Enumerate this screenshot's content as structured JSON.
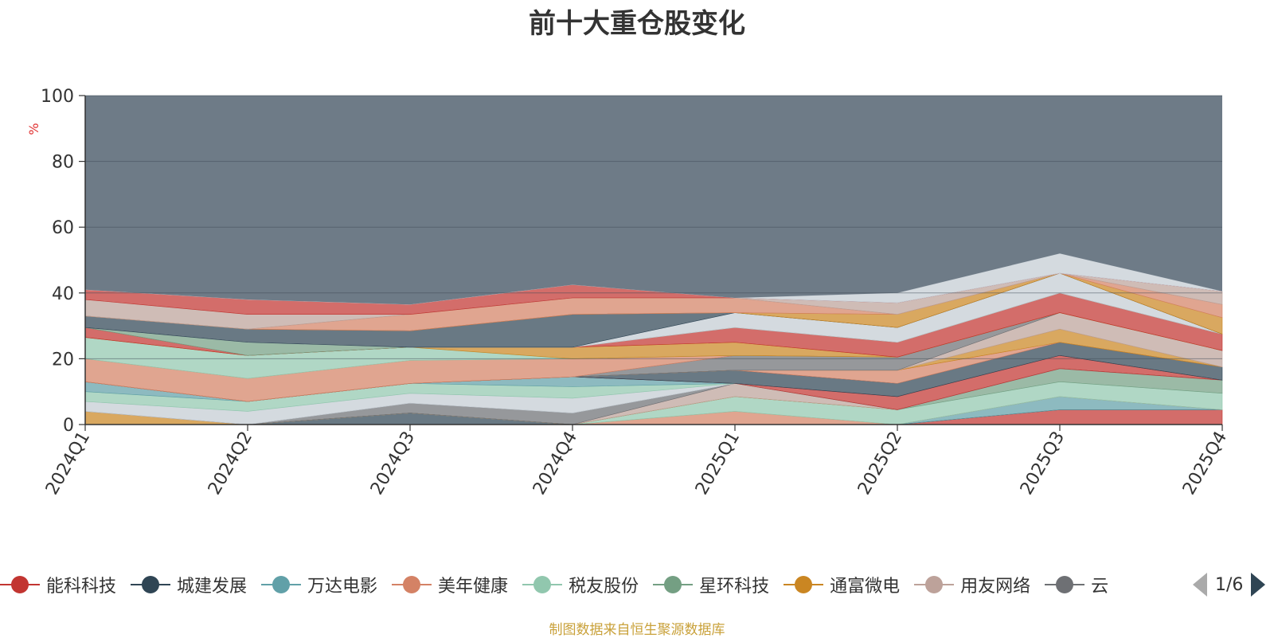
{
  "chart_data": {
    "type": "area",
    "title": "前十大重仓股变化",
    "ylabel": "%",
    "ylim": [
      0,
      100
    ],
    "yticks": [
      0,
      20,
      40,
      60,
      80,
      100
    ],
    "categories": [
      "2024Q1",
      "2024Q2",
      "2024Q3",
      "2024Q4",
      "2025Q1",
      "2025Q2",
      "2025Q3",
      "2025Q4"
    ],
    "stacked": true,
    "grid": true,
    "legend_position": "bottom",
    "series": [
      {
        "name": "能科科技",
        "color": "#c23531",
        "values": [
          0,
          0,
          0,
          0,
          0,
          0,
          4.5,
          4.5
        ]
      },
      {
        "name": "城建发展",
        "color": "#2f4554",
        "values": [
          0,
          0,
          3.5,
          0,
          0,
          0,
          0,
          0
        ]
      },
      {
        "name": "万达电影",
        "color": "#61a0a8",
        "values": [
          0,
          0,
          0,
          0,
          0,
          0,
          4,
          0
        ]
      },
      {
        "name": "美年健康",
        "color": "#d48265",
        "values": [
          0,
          0,
          0,
          0,
          4,
          0,
          0,
          0
        ]
      },
      {
        "name": "税友股份",
        "color": "#91c7ae",
        "values": [
          0,
          0,
          0,
          0,
          4.5,
          4.5,
          4.5,
          5
        ]
      },
      {
        "name": "星环科技",
        "color": "#749f83",
        "values": [
          0,
          0,
          0,
          0,
          0,
          0,
          4,
          4
        ]
      },
      {
        "name": "通富微电",
        "color": "#ca8622",
        "values": [
          4,
          0,
          0,
          0,
          0,
          0,
          0,
          0
        ]
      },
      {
        "name": "用友网络",
        "color": "#bda29a",
        "values": [
          0,
          0,
          0,
          0,
          4,
          0,
          0,
          0
        ]
      },
      {
        "name": "",
        "color": "#6e7074",
        "values": [
          0,
          0,
          3,
          3.5,
          0,
          0,
          0,
          0
        ]
      },
      {
        "name": "",
        "color": "#c4ccd3",
        "values": [
          3,
          4,
          3,
          4.5,
          0,
          0,
          0,
          0
        ]
      },
      {
        "name": "",
        "color": "#91c7ae",
        "values": [
          3,
          3,
          3,
          3.5,
          0,
          0,
          0,
          0
        ]
      },
      {
        "name": "",
        "color": "#61a0a8",
        "values": [
          3,
          0,
          0,
          3,
          0,
          0,
          0,
          0
        ]
      },
      {
        "name": "",
        "color": "#c23531",
        "values": [
          0,
          0,
          0,
          0,
          0,
          4,
          4,
          0
        ]
      },
      {
        "name": "",
        "color": "#2f4554",
        "values": [
          0,
          0,
          0,
          0,
          4,
          4,
          4,
          4
        ]
      },
      {
        "name": "",
        "color": "#d48265",
        "values": [
          0,
          0,
          0,
          0,
          0,
          4,
          0,
          0
        ]
      },
      {
        "name": "",
        "color": "#ca8622",
        "values": [
          0,
          0,
          0,
          0,
          0,
          0,
          4,
          0
        ]
      },
      {
        "name": "",
        "color": "#bda29a",
        "values": [
          0,
          0,
          0,
          0,
          0,
          0,
          5,
          5
        ]
      },
      {
        "name": "",
        "color": "#6e7074",
        "values": [
          0,
          0,
          0,
          0,
          4.5,
          4,
          0,
          0
        ]
      },
      {
        "name": "",
        "color": "#d48265",
        "values": [
          7,
          7,
          7,
          5.5,
          0,
          0,
          0,
          0
        ]
      },
      {
        "name": "",
        "color": "#91c7ae",
        "values": [
          6.5,
          7,
          4,
          0,
          0,
          0,
          0,
          0
        ]
      },
      {
        "name": "",
        "color": "#ca8622",
        "values": [
          0,
          0,
          0,
          3.5,
          4,
          0,
          0,
          0
        ]
      },
      {
        "name": "",
        "color": "#c23531",
        "values": [
          3,
          0,
          0,
          0,
          4.5,
          4.5,
          6,
          5
        ]
      },
      {
        "name": "",
        "color": "#749f83",
        "values": [
          0,
          4,
          0,
          0,
          0,
          0,
          0,
          0
        ]
      },
      {
        "name": "",
        "color": "#c4ccd3",
        "values": [
          0,
          0,
          0,
          0,
          4.5,
          4.5,
          6,
          0
        ]
      },
      {
        "name": "",
        "color": "#2f4554",
        "values": [
          3.5,
          4,
          5,
          10,
          0,
          0,
          0,
          0
        ]
      },
      {
        "name": "",
        "color": "#ca8622",
        "values": [
          0,
          0,
          0,
          0,
          0,
          4,
          0,
          5
        ]
      },
      {
        "name": "",
        "color": "#d48265",
        "values": [
          0,
          0,
          5,
          5,
          4.5,
          0,
          0,
          4
        ]
      },
      {
        "name": "",
        "color": "#bda29a",
        "values": [
          5,
          4.5,
          0,
          0,
          0,
          3.5,
          0,
          4
        ]
      },
      {
        "name": "",
        "color": "#c23531",
        "values": [
          3,
          4.5,
          3,
          4,
          0,
          0,
          0,
          0
        ]
      },
      {
        "name": "",
        "color": "#c4ccd3",
        "values": [
          0,
          0,
          0,
          0,
          0,
          3,
          6,
          0
        ]
      }
    ]
  },
  "legend": {
    "items": [
      {
        "name": "能科科技",
        "color": "#c23531"
      },
      {
        "name": "城建发展",
        "color": "#2f4554"
      },
      {
        "name": "万达电影",
        "color": "#61a0a8"
      },
      {
        "name": "美年健康",
        "color": "#d48265"
      },
      {
        "name": "税友股份",
        "color": "#91c7ae"
      },
      {
        "name": "星环科技",
        "color": "#749f83"
      },
      {
        "name": "通富微电",
        "color": "#ca8622"
      },
      {
        "name": "用友网络",
        "color": "#bda29a"
      },
      {
        "name": "云",
        "color": "#6e7074"
      }
    ],
    "page_label": "1/6"
  },
  "rest_color": "#6e7b87",
  "source_note": "制图数据来自恒生聚源数据库"
}
